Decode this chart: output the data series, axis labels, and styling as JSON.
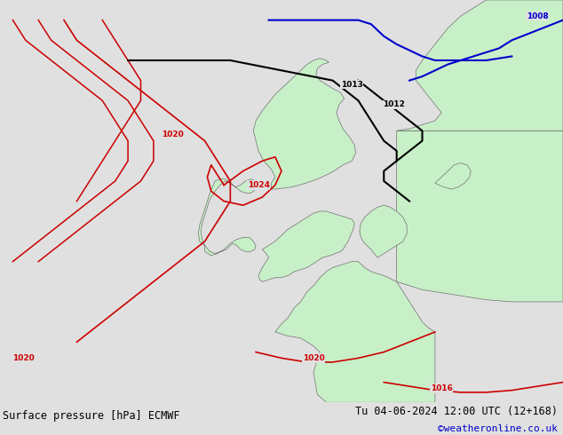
{
  "title_left": "Surface pressure [hPa] ECMWF",
  "title_right": "Tu 04-06-2024 12:00 UTC (12+168)",
  "watermark": "©weatheronline.co.uk",
  "background_color": "#e0e0e0",
  "land_color": "#c8f0c8",
  "land_border_color": "#707070",
  "text_color": "#000000",
  "watermark_color": "#0000cc",
  "contour_red_color": "#cc0000",
  "contour_black_color": "#000000",
  "contour_blue_color": "#0000cc",
  "bottom_bar_color": "#c8c8c8",
  "figwidth": 6.34,
  "figheight": 4.9,
  "dpi": 100
}
